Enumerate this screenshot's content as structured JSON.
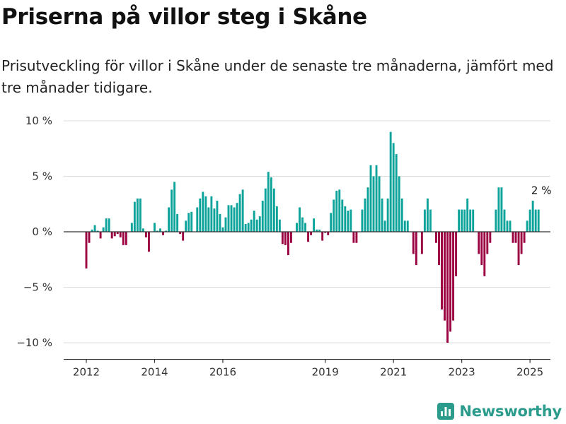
{
  "header": {
    "title": "Priserna på villor steg i Skåne",
    "subtitle": "Prisutveckling för villor i Skåne under de senaste tre månaderna, jämfört med tre månader tidigare."
  },
  "brand": {
    "name": "Newsworthy",
    "icon": "newsworthy-logo-icon"
  },
  "colors": {
    "positive": "#0ba39a",
    "negative": "#9b0041",
    "grid": "#dddddd",
    "axis": "#333333"
  },
  "chart_data": {
    "type": "bar",
    "title": "Priserna på villor steg i Skåne",
    "subtitle": "Prisutveckling för villor i Skåne under de senaste tre månaderna, jämfört med tre månader tidigare.",
    "xlabel": "",
    "ylabel": "",
    "ylim": [
      -11.5,
      10
    ],
    "grid": true,
    "y_ticks": [
      {
        "value": 10,
        "label": "10 %"
      },
      {
        "value": 5,
        "label": "5 %"
      },
      {
        "value": 0,
        "label": "0 %"
      },
      {
        "value": -5,
        "label": "−5 %"
      },
      {
        "value": -10,
        "label": "−10 %"
      }
    ],
    "x_ticks": [
      {
        "year": 2012,
        "label": "2012"
      },
      {
        "year": 2014,
        "label": "2014"
      },
      {
        "year": 2016,
        "label": "2016"
      },
      {
        "year": 2019,
        "label": "2019"
      },
      {
        "year": 2021,
        "label": "2021"
      },
      {
        "year": 2023,
        "label": "2023"
      },
      {
        "year": 2025,
        "label": "2025"
      }
    ],
    "series": [
      {
        "start": "2012-01",
        "frequency": "monthly",
        "values": [
          -3.3,
          -1,
          0.2,
          0.6,
          0.1,
          -0.6,
          0.4,
          1.2,
          1.2,
          -0.6,
          -0.4,
          -0.2,
          -0.5,
          -1.2,
          -1.2,
          0,
          0.8,
          2.7,
          3,
          3,
          0.3,
          -0.5,
          -1.8,
          0,
          0.8,
          0.1,
          0.3,
          -0.3,
          0.1,
          2.2,
          3.8,
          4.5,
          1.6,
          -0.2,
          -0.8,
          1,
          1.7,
          1.8,
          0,
          2.2,
          3,
          3.6,
          3.2,
          2.2,
          3.2,
          2.1,
          2.8,
          1.6,
          0.4,
          1.3,
          2.4,
          2.4,
          2.2,
          2.6,
          3.4,
          3.8,
          0.7,
          0.8,
          1.1,
          1.9,
          1.1,
          1.4,
          2.8,
          3.9,
          5.4,
          4.9,
          3.9,
          2.3,
          1.1,
          -1.1,
          -1.2,
          -2.1,
          -1,
          0,
          0.8,
          2.2,
          1.3,
          0.8,
          -0.9,
          -0.3,
          1.2,
          0.2,
          0.2,
          -0.8,
          -0.1,
          -0.3,
          1.7,
          2.9,
          3.7,
          3.8,
          2.9,
          2.3,
          1.9,
          2,
          -1,
          -1,
          0,
          2,
          3,
          4,
          6,
          5,
          6,
          5,
          3,
          1,
          3,
          9,
          8,
          7,
          5,
          3,
          1,
          1,
          0,
          -2,
          -3,
          0,
          -2,
          2,
          3,
          2,
          0,
          -1,
          -3,
          -7,
          -8,
          -10,
          -9,
          -8,
          -4,
          2,
          2,
          2,
          3,
          2,
          2,
          0,
          -2,
          -3,
          -4,
          -2,
          -1,
          0,
          2,
          4,
          4,
          2,
          1,
          1,
          -1,
          -1,
          -3,
          -2,
          -1,
          1,
          2,
          2.8,
          2,
          2
        ]
      }
    ],
    "annotations": [
      {
        "text": "2 %",
        "date": "2025-05",
        "value": 2
      }
    ]
  }
}
